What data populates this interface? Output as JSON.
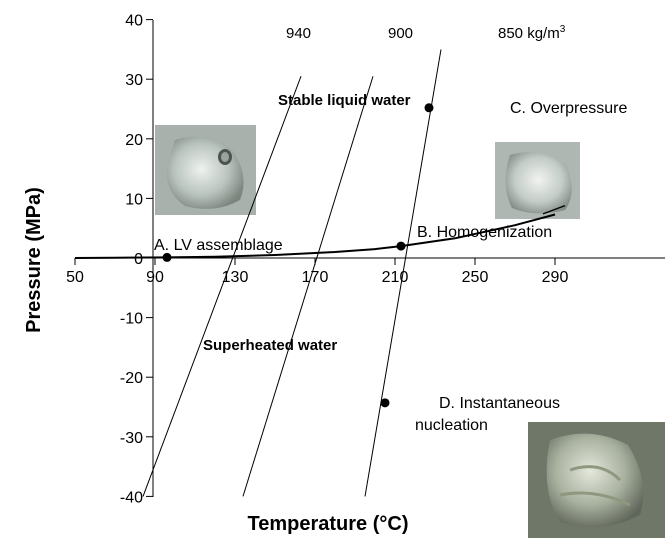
{
  "chart_data": {
    "type": "line",
    "xlabel": "Temperature (°C)",
    "ylabel": "Pressure (MPa)",
    "xlim": [
      50,
      295
    ],
    "ylim": [
      -40,
      40
    ],
    "x_ticks": [
      "50",
      "90",
      "130",
      "170",
      "210",
      "250",
      "290"
    ],
    "y_ticks": [
      "40",
      "30",
      "20",
      "10",
      "0",
      "-10",
      "-20",
      "-30",
      "-40"
    ],
    "grid": false,
    "regions": {
      "stable": "Stable liquid water",
      "superheated": "Superheated water"
    },
    "isochores": [
      {
        "label": "940",
        "points": [
          [
            84,
            -40
          ],
          [
            163,
            30.5
          ]
        ]
      },
      {
        "label": "900",
        "points": [
          [
            134,
            -40
          ],
          [
            199,
            30.5
          ]
        ]
      },
      {
        "label": "850 kg/m",
        "superscript": "3",
        "points": [
          [
            195,
            -40
          ],
          [
            233,
            35
          ]
        ]
      }
    ],
    "saturation_curve": {
      "points": [
        [
          50,
          0
        ],
        [
          70,
          0.05
        ],
        [
          96,
          0.1
        ],
        [
          120,
          0.2
        ],
        [
          150,
          0.5
        ],
        [
          180,
          1.0
        ],
        [
          200,
          1.5
        ],
        [
          213,
          2.0
        ],
        [
          240,
          3.3
        ],
        [
          270,
          5.5
        ],
        [
          290,
          7.3
        ]
      ]
    },
    "saturation_curve_upper": {
      "points": [
        [
          284,
          7.4
        ],
        [
          295,
          8.8
        ]
      ]
    },
    "points": [
      {
        "label": "A. LV assemblage",
        "x": 96,
        "y": 0.1
      },
      {
        "label": "B. Homogenization",
        "x": 213,
        "y": 2.0
      },
      {
        "label": "C. Overpressure",
        "x": 227,
        "y": 25.2
      },
      {
        "label": "D. Instantaneous",
        "label2": "nucleation",
        "x": 205,
        "y": -24.3
      }
    ]
  }
}
